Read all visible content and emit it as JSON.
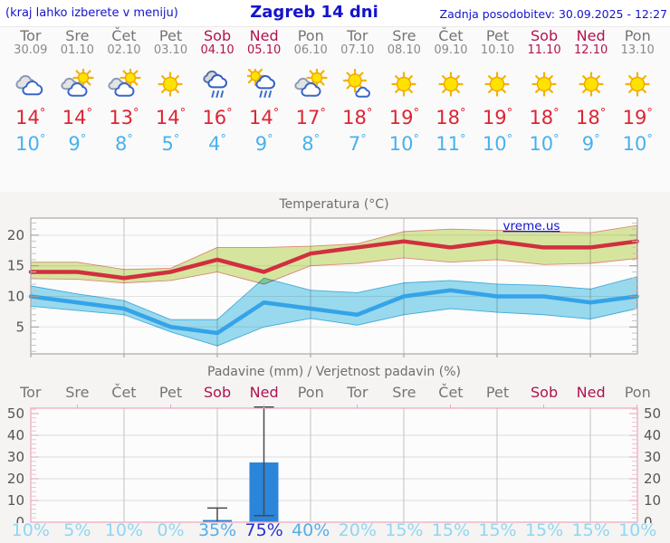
{
  "header": {
    "left_note": "(kraj lahko izberete v meniju)",
    "title": "Zagreb 14 dni",
    "updated": "Zadnja posodobitev: 30.09.2025 - 12:27"
  },
  "units": {
    "degree": "°"
  },
  "colors": {
    "link_blue": "#1414cc",
    "weekday_gray": "#757575",
    "weekend_red": "#b01350",
    "temp_max_red": "#dd2433",
    "temp_min_blue": "#45b2ef",
    "bar_blue": "#2b85d8",
    "prob_low": "#8ed7f2",
    "prob_mid": "#53aee8",
    "prob_high": "#2433cc"
  },
  "days": [
    {
      "name": "Tor",
      "date": "30.09",
      "weekend": false,
      "icon": "cloudy",
      "tmax": 14,
      "tmin": 10,
      "prob": "10%"
    },
    {
      "name": "Sre",
      "date": "01.10",
      "weekend": false,
      "icon": "partly-cloudy",
      "tmax": 14,
      "tmin": 9,
      "prob": "5%"
    },
    {
      "name": "Čet",
      "date": "02.10",
      "weekend": false,
      "icon": "partly-cloudy",
      "tmax": 13,
      "tmin": 8,
      "prob": "10%"
    },
    {
      "name": "Pet",
      "date": "03.10",
      "weekend": false,
      "icon": "sunny",
      "tmax": 14,
      "tmin": 5,
      "prob": "0%"
    },
    {
      "name": "Sob",
      "date": "04.10",
      "weekend": true,
      "icon": "rain",
      "tmax": 16,
      "tmin": 4,
      "prob": "35%"
    },
    {
      "name": "Ned",
      "date": "05.10",
      "weekend": true,
      "icon": "sun-rain",
      "tmax": 14,
      "tmin": 9,
      "prob": "75%"
    },
    {
      "name": "Pon",
      "date": "06.10",
      "weekend": false,
      "icon": "partly-cloudy",
      "tmax": 17,
      "tmin": 8,
      "prob": "40%"
    },
    {
      "name": "Tor",
      "date": "07.10",
      "weekend": false,
      "icon": "mostly-sunny",
      "tmax": 18,
      "tmin": 7,
      "prob": "20%"
    },
    {
      "name": "Sre",
      "date": "08.10",
      "weekend": false,
      "icon": "sunny",
      "tmax": 19,
      "tmin": 10,
      "prob": "15%"
    },
    {
      "name": "Čet",
      "date": "09.10",
      "weekend": false,
      "icon": "sunny",
      "tmax": 18,
      "tmin": 11,
      "prob": "15%"
    },
    {
      "name": "Pet",
      "date": "10.10",
      "weekend": false,
      "icon": "sunny",
      "tmax": 19,
      "tmin": 10,
      "prob": "15%"
    },
    {
      "name": "Sob",
      "date": "11.10",
      "weekend": true,
      "icon": "sunny",
      "tmax": 18,
      "tmin": 10,
      "prob": "15%"
    },
    {
      "name": "Ned",
      "date": "12.10",
      "weekend": true,
      "icon": "sunny",
      "tmax": 18,
      "tmin": 9,
      "prob": "15%"
    },
    {
      "name": "Pon",
      "date": "13.10",
      "weekend": false,
      "icon": "sunny",
      "tmax": 19,
      "tmin": 10,
      "prob": "10%"
    }
  ],
  "chart_data": [
    {
      "type": "area",
      "title": "Temperatura (°C)",
      "watermark": "vreme.us",
      "categories": [
        "Tor",
        "Sre",
        "Čet",
        "Pet",
        "Sob",
        "Ned",
        "Pon",
        "Tor",
        "Sre",
        "Čet",
        "Pet",
        "Sob",
        "Ned",
        "Pon"
      ],
      "series": [
        {
          "name": "max temperature",
          "color": "#d12f3f",
          "values": [
            14,
            14,
            13,
            14,
            16,
            14,
            17,
            18,
            19,
            18,
            19,
            18,
            18,
            19
          ]
        },
        {
          "name": "min temperature",
          "color": "#35a3e8",
          "values": [
            10,
            9,
            8,
            5,
            4,
            9,
            8,
            7,
            10,
            11,
            10,
            10,
            9,
            10
          ]
        }
      ],
      "bands": [
        {
          "name": "max range",
          "fill": "#d9e8a0",
          "edge": "#e08878",
          "upper": [
            15.6,
            15.6,
            14.4,
            14.6,
            18,
            18,
            18.2,
            18.6,
            20.6,
            21,
            20.8,
            20.6,
            20.4,
            21.6
          ],
          "lower": [
            12.9,
            12.8,
            12.2,
            12.6,
            14,
            12,
            15,
            15.4,
            16.3,
            15.6,
            16,
            15.2,
            15.4,
            16.2
          ]
        },
        {
          "name": "min range",
          "fill": "#9adcf0",
          "edge": "#44acdf",
          "upper": [
            11.7,
            10.4,
            9.3,
            6.2,
            6.2,
            13,
            11,
            10.6,
            12.2,
            12.6,
            12,
            11.8,
            11.2,
            13.2
          ],
          "lower": [
            8.4,
            7.7,
            7,
            4.2,
            1.9,
            5,
            6.4,
            5.3,
            7,
            8,
            7.4,
            7,
            6.3,
            8
          ]
        }
      ],
      "ylim": [
        0.6,
        22.8
      ],
      "yticks": [
        5,
        10,
        15,
        20
      ],
      "grid": "vertical lines every 2nd day, horizontal at yticks"
    },
    {
      "type": "bar",
      "title": "Padavine (mm) / Verjetnost padavin (%)",
      "categories": [
        "Tor",
        "Sre",
        "Čet",
        "Pet",
        "Sob",
        "Ned",
        "Pon",
        "Tor",
        "Sre",
        "Čet",
        "Pet",
        "Sob",
        "Ned",
        "Pon"
      ],
      "values": [
        0,
        0,
        0,
        0,
        1,
        27.5,
        0,
        0,
        0,
        0,
        0,
        0,
        0,
        0
      ],
      "whisker_low": [
        null,
        null,
        null,
        null,
        0,
        3,
        null,
        null,
        null,
        null,
        null,
        null,
        null,
        null
      ],
      "whisker_high": [
        null,
        null,
        null,
        null,
        6.5,
        53,
        null,
        null,
        null,
        null,
        null,
        null,
        null,
        null
      ],
      "probabilities": [
        "10%",
        "5%",
        "10%",
        "0%",
        "35%",
        "75%",
        "40%",
        "20%",
        "15%",
        "15%",
        "15%",
        "15%",
        "15%",
        "10%"
      ],
      "ylim": [
        0,
        52.5
      ],
      "yticks": [
        0,
        10,
        20,
        30,
        40,
        50
      ],
      "grid": "horizontal at 10..40, vertical every 2nd day"
    }
  ]
}
